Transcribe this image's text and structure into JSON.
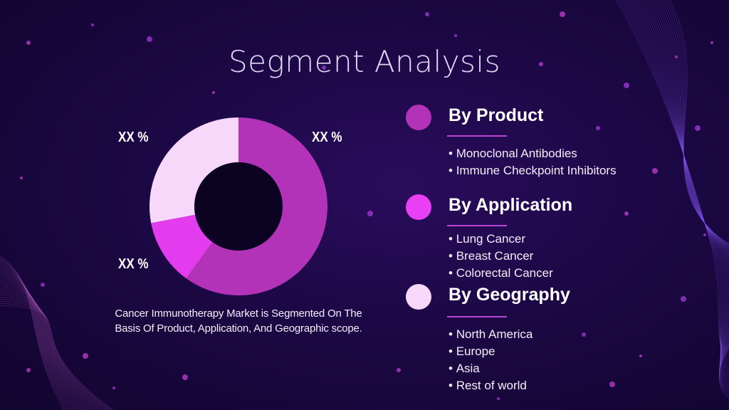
{
  "slide": {
    "title": "Segment Analysis",
    "caption": "Cancer Immunotherapy Market is Segmented On The Basis Of Product, Application, And Geographic scope."
  },
  "chart_data": {
    "type": "pie",
    "variant": "donut",
    "values": [
      60,
      12,
      28
    ],
    "colors": [
      "#b233b8",
      "#e23cee",
      "#f7d8fa"
    ],
    "data_labels": [
      "XX %",
      "XX %",
      "XX %"
    ]
  },
  "segments": [
    {
      "heading": "By Product",
      "color": "#b233b8",
      "items": [
        "Monoclonal Antibodies",
        "Immune Checkpoint Inhibitors"
      ]
    },
    {
      "heading": "By Application",
      "color": "#e940f5",
      "items": [
        "Lung Cancer",
        "Breast Cancer",
        "Colorectal Cancer"
      ]
    },
    {
      "heading": "By Geography",
      "color": "#f7d8fa",
      "items": [
        "North America",
        "Europe",
        "Asia",
        "Rest of world"
      ]
    }
  ]
}
